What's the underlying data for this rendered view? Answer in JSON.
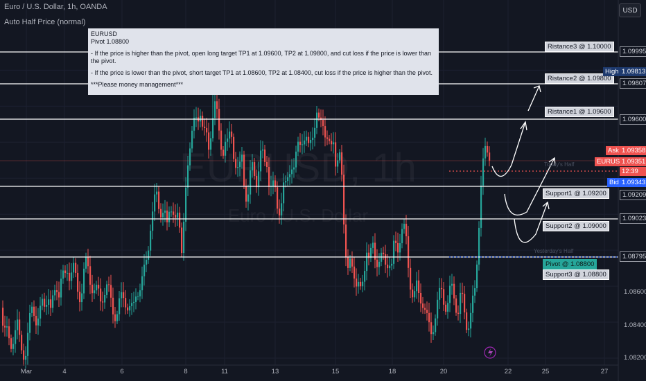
{
  "header": {
    "title": "Euro / U.S. Dollar, 1h, OANDA",
    "indicator": "Auto Half Price (normal)",
    "currency_button": "USD"
  },
  "watermark": {
    "symbol": "EURUSD, 1h",
    "name": "Euro / U.S. Dollar"
  },
  "note": {
    "line1": "EURUSD",
    "line2": "Pivot 1.08800",
    "line3": "- If the price is higher than the pivot, open long target TP1 at 1.09600, TP2 at 1.09800, and cut loss if the price is lower than the pivot.",
    "line4": "- If the price is lower than the pivot, short target TP1 at 1.08600, TP2 at 1.08400, cut loss if the price is higher than the pivot.",
    "line5": "***Please money management***"
  },
  "levels": {
    "r3": "Ristance3 @ 1.10000",
    "r2": "Ristance2 @ 1.09800",
    "r1": "Ristance1 @ 1.09600",
    "s1": "Support1 @ 1.09200",
    "s2": "Support2 @ 1.09000",
    "pivot": "Pivot @ 1.08800",
    "s3": "Support3 @ 1.08800"
  },
  "faint_labels": {
    "yesterday_half": "Yesterday's Half",
    "todays_half": "Today's Half"
  },
  "price_axis": {
    "line_labels": [
      "1.09995",
      "1.09807",
      "1.09600",
      "1.09209",
      "1.09023",
      "1.08795"
    ],
    "ticks": [
      "1.08600",
      "1.08400",
      "1.08200"
    ],
    "high_label": "High",
    "high_value": "1.09813",
    "ask_label": "Ask",
    "ask_value": "1.09358",
    "symbol_label": "EURUSD",
    "last_value": "1.09351",
    "countdown": "12:39",
    "bid_label": "Bid",
    "bid_value": "1.09343"
  },
  "time_axis": [
    "Mar",
    "4",
    "6",
    "8",
    "11",
    "13",
    "15",
    "18",
    "20",
    "22",
    "25",
    "27"
  ],
  "colors": {
    "background": "#131722",
    "up": "#26a69a",
    "down": "#ef5350",
    "bid": "#2962ff",
    "high": "#1e3a6e"
  },
  "chart_data": {
    "type": "candlestick",
    "timeframe": "1h",
    "ylim": [
      1.0818,
      1.1015
    ],
    "x_ticks": [
      "Mar",
      "4",
      "6",
      "8",
      "11",
      "13",
      "15",
      "18",
      "20",
      "22",
      "25",
      "27"
    ],
    "close_path": [
      [
        0,
        1.0848
      ],
      [
        4,
        1.0836
      ],
      [
        8,
        1.0839
      ],
      [
        12,
        1.083
      ],
      [
        16,
        1.0824
      ],
      [
        20,
        1.0835
      ],
      [
        24,
        1.084
      ],
      [
        28,
        1.0828
      ],
      [
        32,
        1.0821
      ],
      [
        36,
        1.0823
      ],
      [
        40,
        1.0836
      ],
      [
        44,
        1.0848
      ],
      [
        48,
        1.0846
      ],
      [
        52,
        1.084
      ],
      [
        56,
        1.0844
      ],
      [
        60,
        1.085
      ],
      [
        64,
        1.085
      ],
      [
        68,
        1.0858
      ],
      [
        72,
        1.0845
      ],
      [
        76,
        1.0852
      ],
      [
        80,
        1.0862
      ],
      [
        84,
        1.0858
      ],
      [
        88,
        1.0865
      ],
      [
        92,
        1.0862
      ],
      [
        96,
        1.087
      ],
      [
        100,
        1.0868
      ],
      [
        104,
        1.0871
      ],
      [
        108,
        1.0862
      ],
      [
        112,
        1.0855
      ],
      [
        116,
        1.0858
      ],
      [
        120,
        1.0868
      ],
      [
        124,
        1.0871
      ],
      [
        128,
        1.0865
      ],
      [
        132,
        1.0862
      ],
      [
        136,
        1.0858
      ],
      [
        140,
        1.0854
      ],
      [
        144,
        1.0852
      ],
      [
        148,
        1.0858
      ],
      [
        152,
        1.086
      ],
      [
        156,
        1.0855
      ],
      [
        160,
        1.085
      ],
      [
        164,
        1.0846
      ],
      [
        168,
        1.0845
      ],
      [
        172,
        1.085
      ],
      [
        176,
        1.0855
      ],
      [
        180,
        1.0853
      ],
      [
        184,
        1.0848
      ],
      [
        188,
        1.0845
      ],
      [
        192,
        1.085
      ],
      [
        196,
        1.086
      ],
      [
        200,
        1.0856
      ],
      [
        204,
        1.0862
      ],
      [
        208,
        1.0872
      ],
      [
        212,
        1.088
      ],
      [
        216,
        1.0892
      ],
      [
        220,
        1.0902
      ],
      [
        224,
        1.0915
      ],
      [
        228,
        1.0905
      ],
      [
        232,
        1.0898
      ],
      [
        236,
        1.0902
      ],
      [
        240,
        1.0895
      ],
      [
        244,
        1.0905
      ],
      [
        248,
        1.09
      ],
      [
        252,
        1.0897
      ],
      [
        256,
        1.0902
      ],
      [
        260,
        1.0885
      ],
      [
        262,
        1.0873
      ],
      [
        264,
        1.0895
      ],
      [
        268,
        1.092
      ],
      [
        272,
        1.0935
      ],
      [
        276,
        1.0947
      ],
      [
        280,
        1.0954
      ],
      [
        284,
        1.095
      ],
      [
        288,
        1.0957
      ],
      [
        292,
        1.0948
      ],
      [
        296,
        1.0945
      ],
      [
        300,
        1.0935
      ],
      [
        304,
        1.0948
      ],
      [
        308,
        1.0965
      ],
      [
        312,
        1.0955
      ],
      [
        316,
        1.094
      ],
      [
        320,
        1.0935
      ],
      [
        324,
        1.0942
      ],
      [
        328,
        1.0938
      ],
      [
        332,
        1.0945
      ],
      [
        336,
        1.0935
      ],
      [
        340,
        1.0928
      ],
      [
        344,
        1.0922
      ],
      [
        348,
        1.093
      ],
      [
        352,
        1.0915
      ],
      [
        356,
        1.091
      ],
      [
        360,
        1.092
      ],
      [
        364,
        1.0925
      ],
      [
        368,
        1.0918
      ],
      [
        372,
        1.0928
      ],
      [
        376,
        1.0935
      ],
      [
        380,
        1.0925
      ],
      [
        384,
        1.093
      ],
      [
        388,
        1.0918
      ],
      [
        392,
        1.0915
      ],
      [
        396,
        1.091
      ],
      [
        400,
        1.0902
      ],
      [
        404,
        1.0908
      ],
      [
        408,
        1.0915
      ],
      [
        412,
        1.0912
      ],
      [
        416,
        1.0925
      ],
      [
        420,
        1.093
      ],
      [
        424,
        1.0925
      ],
      [
        428,
        1.0935
      ],
      [
        432,
        1.094
      ],
      [
        436,
        1.0945
      ],
      [
        440,
        1.0942
      ],
      [
        444,
        1.0935
      ],
      [
        448,
        1.0942
      ],
      [
        452,
        1.095
      ],
      [
        456,
        1.0956
      ],
      [
        460,
        1.0948
      ],
      [
        464,
        1.0952
      ],
      [
        468,
        1.0946
      ],
      [
        472,
        1.0942
      ],
      [
        476,
        1.0935
      ],
      [
        480,
        1.094
      ],
      [
        484,
        1.0925
      ],
      [
        488,
        1.0938
      ],
      [
        492,
        1.092
      ],
      [
        496,
        1.0885
      ],
      [
        500,
        1.087
      ],
      [
        504,
        1.0875
      ],
      [
        508,
        1.0868
      ],
      [
        512,
        1.086
      ],
      [
        516,
        1.0863
      ],
      [
        520,
        1.0858
      ],
      [
        524,
        1.0865
      ],
      [
        528,
        1.088
      ],
      [
        532,
        1.0875
      ],
      [
        536,
        1.0885
      ],
      [
        540,
        1.0875
      ],
      [
        544,
        1.0872
      ],
      [
        548,
        1.0878
      ],
      [
        552,
        1.0875
      ],
      [
        556,
        1.087
      ],
      [
        560,
        1.0875
      ],
      [
        564,
        1.0872
      ],
      [
        568,
        1.0885
      ],
      [
        572,
        1.0878
      ],
      [
        576,
        1.0888
      ],
      [
        580,
        1.0895
      ],
      [
        584,
        1.0888
      ],
      [
        588,
        1.087
      ],
      [
        592,
        1.086
      ],
      [
        596,
        1.0855
      ],
      [
        600,
        1.0858
      ],
      [
        604,
        1.0852
      ],
      [
        608,
        1.0855
      ],
      [
        612,
        1.0848
      ],
      [
        616,
        1.0838
      ],
      [
        620,
        1.0832
      ],
      [
        624,
        1.084
      ],
      [
        628,
        1.0848
      ],
      [
        632,
        1.0852
      ],
      [
        636,
        1.0856
      ],
      [
        640,
        1.0853
      ],
      [
        644,
        1.085
      ],
      [
        648,
        1.0855
      ],
      [
        652,
        1.0857
      ],
      [
        656,
        1.0852
      ],
      [
        660,
        1.0848
      ],
      [
        664,
        1.0855
      ],
      [
        668,
        1.0845
      ],
      [
        672,
        1.084
      ],
      [
        676,
        1.0842
      ],
      [
        680,
        1.0848
      ],
      [
        684,
        1.0855
      ],
      [
        688,
        1.088
      ],
      [
        692,
        1.0915
      ],
      [
        696,
        1.0928
      ],
      [
        700,
        1.0935
      ],
      [
        704,
        1.0932
      ],
      [
        706,
        1.0935
      ]
    ]
  }
}
